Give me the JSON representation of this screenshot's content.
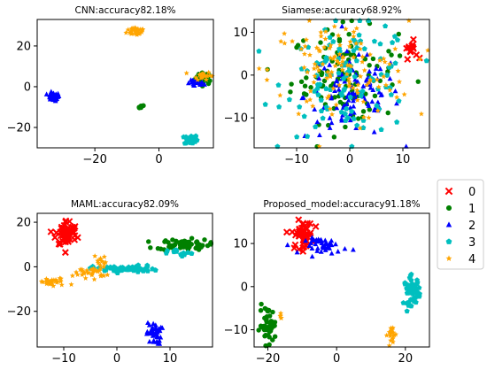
{
  "colors": {
    "0": "#ff0000",
    "1": "#008000",
    "2": "#0000ff",
    "3": "#00bfbf",
    "4": "#ffa500"
  },
  "legend": {
    "entries": [
      {
        "label": "0",
        "marker": "x"
      },
      {
        "label": "1",
        "marker": "circle"
      },
      {
        "label": "2",
        "marker": "triangle"
      },
      {
        "label": "3",
        "marker": "pentagon"
      },
      {
        "label": "4",
        "marker": "star"
      }
    ]
  },
  "chart_data": [
    {
      "type": "scatter",
      "title": "CNN:accuracy82.18%",
      "xlim": [
        -38,
        17
      ],
      "ylim": [
        -30,
        33
      ],
      "xticks": [
        -20,
        0
      ],
      "yticks": [
        20,
        0,
        -20
      ],
      "clusters": [
        {
          "label": "1",
          "cx": 14,
          "cy": 4,
          "sx": 1.3,
          "sy": 1.4,
          "n": 40
        },
        {
          "label": "1",
          "cx": -5.5,
          "cy": -10,
          "sx": 0.4,
          "sy": 0.5,
          "n": 8
        },
        {
          "label": "2",
          "cx": -33,
          "cy": -5,
          "sx": 1.0,
          "sy": 1.0,
          "n": 30
        },
        {
          "label": "2",
          "cx": 11.5,
          "cy": 1.5,
          "sx": 1.3,
          "sy": 0.8,
          "n": 22
        },
        {
          "label": "3",
          "cx": 10,
          "cy": -26,
          "sx": 1.0,
          "sy": 1.2,
          "n": 30
        },
        {
          "label": "4",
          "cx": -7,
          "cy": 27.5,
          "sx": 1.5,
          "sy": 1.2,
          "n": 34
        },
        {
          "label": "4",
          "cx": 13.5,
          "cy": 5.5,
          "sx": 1.4,
          "sy": 1.0,
          "n": 22
        }
      ]
    },
    {
      "type": "scatter",
      "title": "Siamese:accuracy68.92%",
      "xlim": [
        -18,
        15
      ],
      "ylim": [
        -17,
        13
      ],
      "xticks": [
        -10,
        0,
        10
      ],
      "yticks": [
        10,
        0,
        -10
      ],
      "clusters": [
        {
          "label": "0",
          "cx": 11.5,
          "cy": 6,
          "sx": 0.6,
          "sy": 1.0,
          "n": 14
        },
        {
          "label": "1",
          "cx": -1,
          "cy": 0,
          "sx": 5.0,
          "sy": 5.5,
          "n": 110
        },
        {
          "label": "2",
          "cx": 0.5,
          "cy": -5,
          "sx": 4.5,
          "sy": 5.0,
          "n": 100
        },
        {
          "label": "3",
          "cx": 0,
          "cy": -1,
          "sx": 6.0,
          "sy": 6.5,
          "n": 110
        },
        {
          "label": "4",
          "cx": -2,
          "cy": 1,
          "sx": 6.5,
          "sy": 6.0,
          "n": 120
        }
      ]
    },
    {
      "type": "scatter",
      "title": "MAML:accuracy82.09%",
      "xlim": [
        -15,
        18
      ],
      "ylim": [
        -36,
        24
      ],
      "xticks": [
        -10,
        0,
        10
      ],
      "yticks": [
        20,
        0,
        -20
      ],
      "clusters": [
        {
          "label": "0",
          "cx": -9.5,
          "cy": 15,
          "sx": 1.0,
          "sy": 3.0,
          "n": 60
        },
        {
          "label": "1",
          "cx": 12.5,
          "cy": 10,
          "sx": 2.5,
          "sy": 1.2,
          "n": 70
        },
        {
          "label": "2",
          "cx": 7,
          "cy": -30,
          "sx": 0.7,
          "sy": 2.5,
          "n": 40
        },
        {
          "label": "3",
          "cx": 1.5,
          "cy": -1,
          "sx": 3.0,
          "sy": 0.8,
          "n": 55
        },
        {
          "label": "3",
          "cx": 12,
          "cy": 6,
          "sx": 1.2,
          "sy": 0.8,
          "n": 12
        },
        {
          "label": "4",
          "cx": -12,
          "cy": -7,
          "sx": 1.5,
          "sy": 1.0,
          "n": 30
        },
        {
          "label": "4",
          "cx": -5,
          "cy": -2.5,
          "sx": 1.5,
          "sy": 1.2,
          "n": 30
        },
        {
          "label": "4",
          "cx": -3,
          "cy": 3,
          "sx": 0.6,
          "sy": 1.5,
          "n": 10
        }
      ]
    },
    {
      "type": "scatter",
      "title": "Proposed_model:accuracy91.18%",
      "xlim": [
        -24,
        27
      ],
      "ylim": [
        -14,
        17
      ],
      "xticks": [
        -20,
        0,
        20
      ],
      "yticks": [
        10,
        0,
        -10
      ],
      "clusters": [
        {
          "label": "0",
          "cx": -10,
          "cy": 12,
          "sx": 1.5,
          "sy": 1.6,
          "n": 50
        },
        {
          "label": "1",
          "cx": -20,
          "cy": -9,
          "sx": 1.2,
          "sy": 2.2,
          "n": 45
        },
        {
          "label": "2",
          "cx": -3,
          "cy": 9.5,
          "sx": 3.0,
          "sy": 0.9,
          "n": 45
        },
        {
          "label": "3",
          "cx": 22,
          "cy": -1,
          "sx": 1.2,
          "sy": 1.6,
          "n": 45
        },
        {
          "label": "4",
          "cx": 16,
          "cy": -11,
          "sx": 0.6,
          "sy": 1.3,
          "n": 20
        },
        {
          "label": "4",
          "cx": -16,
          "cy": -7,
          "sx": 0.5,
          "sy": 0.6,
          "n": 5
        }
      ]
    }
  ]
}
